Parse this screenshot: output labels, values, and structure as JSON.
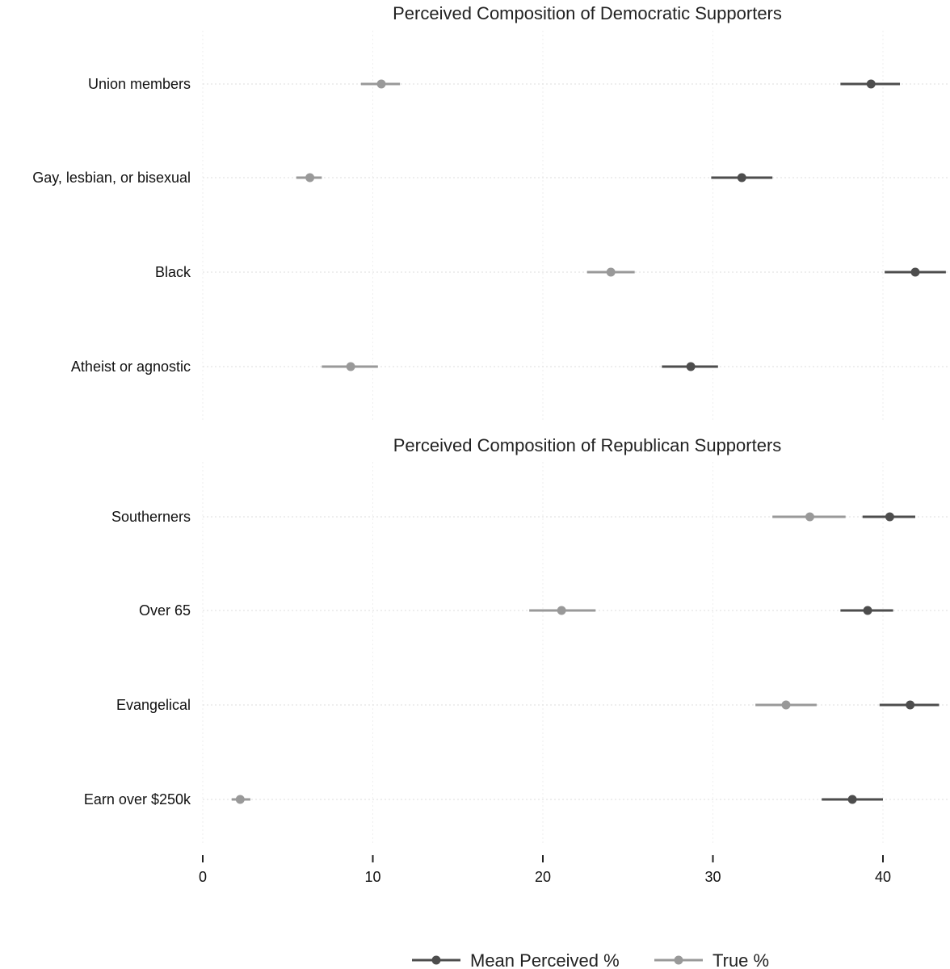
{
  "chart_data": {
    "type": "scatter",
    "variant": "dot-and-whisker",
    "x_axis": {
      "range": [
        0,
        44
      ],
      "ticks": [
        0,
        10,
        20,
        30,
        40
      ],
      "tick_labels": [
        "0",
        "10",
        "20",
        "30",
        "40"
      ]
    },
    "panels": [
      {
        "title": "Perceived Composition of Democratic Supporters",
        "categories": [
          "Union members",
          "Gay, lesbian, or bisexual",
          "Black",
          "Atheist or agnostic"
        ],
        "series": [
          {
            "name": "Mean Perceived %",
            "color": "#4d4d4d",
            "values": [
              39.3,
              31.7,
              41.9,
              28.7
            ],
            "ci_low": [
              37.5,
              29.9,
              40.1,
              27.0
            ],
            "ci_high": [
              41.0,
              33.5,
              43.7,
              30.3
            ]
          },
          {
            "name": "True %",
            "color": "#999999",
            "values": [
              10.5,
              6.3,
              24.0,
              8.7
            ],
            "ci_low": [
              9.3,
              5.5,
              22.6,
              7.0
            ],
            "ci_high": [
              11.6,
              7.0,
              25.4,
              10.3
            ]
          }
        ]
      },
      {
        "title": "Perceived Composition of Republican Supporters",
        "categories": [
          "Southerners",
          "Over 65",
          "Evangelical",
          "Earn over $250k"
        ],
        "series": [
          {
            "name": "Mean Perceived %",
            "color": "#4d4d4d",
            "values": [
              40.4,
              39.1,
              41.6,
              38.2
            ],
            "ci_low": [
              38.8,
              37.5,
              39.8,
              36.4
            ],
            "ci_high": [
              41.9,
              40.6,
              43.3,
              40.0
            ]
          },
          {
            "name": "True %",
            "color": "#999999",
            "values": [
              35.7,
              21.1,
              34.3,
              2.2
            ],
            "ci_low": [
              33.5,
              19.2,
              32.5,
              1.7
            ],
            "ci_high": [
              37.8,
              23.1,
              36.1,
              2.8
            ]
          }
        ]
      }
    ],
    "legend": {
      "position": "bottom",
      "entries": [
        "Mean Perceived %",
        "True %"
      ]
    },
    "grid": true
  }
}
